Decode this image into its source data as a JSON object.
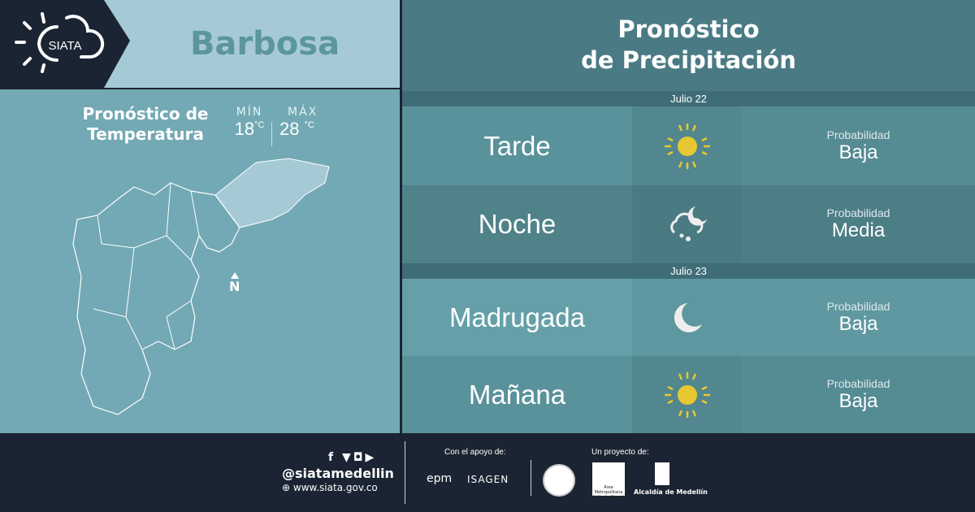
{
  "brand": {
    "logo_text": "SIATA"
  },
  "header": {
    "city": "Barbosa",
    "title_line1": "Pronóstico",
    "title_line2": "de Precipitación"
  },
  "temperature": {
    "title_line1": "Pronóstico de",
    "title_line2": "Temperatura",
    "min_label": "MÍN",
    "max_label": "MÁX",
    "min_value": "18",
    "max_value": "28",
    "unit": "°C"
  },
  "map": {
    "north_label": "N"
  },
  "forecast": [
    {
      "date": "Julio 22",
      "periods": [
        {
          "period": "Tarde",
          "icon": "sun-icon",
          "prob_label": "Probabilidad",
          "prob_value": "Baja"
        },
        {
          "period": "Noche",
          "icon": "cloud-rain-moon-icon",
          "prob_label": "Probabilidad",
          "prob_value": "Media"
        }
      ]
    },
    {
      "date": "Julio 23",
      "periods": [
        {
          "period": "Madrugada",
          "icon": "moon-icon",
          "prob_label": "Probabilidad",
          "prob_value": "Baja"
        },
        {
          "period": "Mañana",
          "icon": "sun-icon",
          "prob_label": "Probabilidad",
          "prob_value": "Baja"
        }
      ]
    }
  ],
  "footer": {
    "handle": "@siatamedellin",
    "website": "www.siata.gov.co",
    "support_label": "Con el apoyo de:",
    "support_logos": [
      "epm",
      "ISAGEN"
    ],
    "project_label": "Un proyecto de:",
    "project_logos": [
      "Área Metropolitana Valle de Aburrá",
      "Alcaldía de Medellín"
    ]
  },
  "colors": {
    "sun": "#e8c832",
    "navy": "#1b2432",
    "city": "#5b969d"
  }
}
